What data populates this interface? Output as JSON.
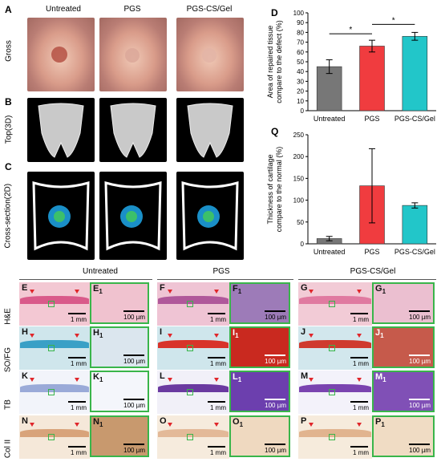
{
  "panels": {
    "A": "A",
    "B": "B",
    "C": "C",
    "D": "D",
    "Q": "Q",
    "E": "E",
    "F": "F",
    "G": "G",
    "H": "H",
    "I": "I",
    "J": "J",
    "K": "K",
    "L": "L",
    "M": "M",
    "N": "N",
    "O": "O",
    "P": "P",
    "E1": "E",
    "F1": "F",
    "G1": "G",
    "H1": "H",
    "I1": "I",
    "J1": "J",
    "K1": "K",
    "L1": "L",
    "M1": "M",
    "N1": "N",
    "O1": "O",
    "P1": "P",
    "sub1": "1"
  },
  "top_columns": [
    "Untreated",
    "PGS",
    "PGS-CS/Gel"
  ],
  "top_rows": [
    "Gross",
    "Top(3D)",
    "Cross-section(2D)"
  ],
  "hist_columns": [
    "Untreated",
    "PGS",
    "PGS-CS/Gel"
  ],
  "hist_rows": [
    "H&E",
    "SO/FG",
    "TB",
    "Col II"
  ],
  "scale": {
    "low": "1 mm",
    "high": "100 µm"
  },
  "colors": {
    "gray": "#777777",
    "red": "#f03c3f",
    "cyan": "#22c6c9",
    "inset_border": "#39b54a"
  },
  "chart_data": [
    {
      "type": "bar",
      "panel": "D",
      "categories": [
        "Untreated",
        "PGS",
        "PGS-CS/Gel"
      ],
      "values": [
        45,
        66,
        76
      ],
      "errors": [
        7,
        6,
        4
      ],
      "ylabel": "Area of repaired tissue compare to the defect (%)",
      "ylim": [
        0,
        100
      ],
      "yticks": [
        0,
        10,
        20,
        30,
        40,
        50,
        60,
        70,
        80,
        90,
        100
      ],
      "significance": [
        {
          "from": 0,
          "to": 1,
          "label": "*"
        },
        {
          "from": 1,
          "to": 2,
          "label": "*"
        }
      ]
    },
    {
      "type": "bar",
      "panel": "Q",
      "categories": [
        "Untreated",
        "PGS",
        "PGS-CS/Gel"
      ],
      "values": [
        12,
        133,
        88
      ],
      "errors": [
        5,
        85,
        6
      ],
      "ylabel": "Thickness of cartilage compare to the normal (%)",
      "ylim": [
        0,
        250
      ],
      "yticks": [
        0,
        50,
        100,
        150,
        200,
        250
      ]
    }
  ]
}
